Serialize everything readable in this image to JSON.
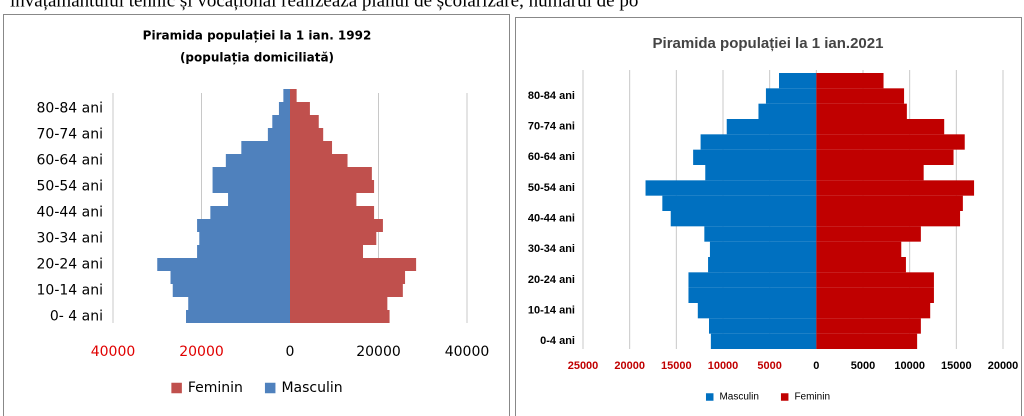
{
  "header_text": "învățământului tehnic și vocațional realizează planul de școlarizare, numărul de po",
  "chart_data": [
    {
      "type": "pyramid",
      "title": "Piramida populației  la 1 ian. 1992",
      "subtitle": "(populația domiciliată)",
      "categories": [
        "0- 4 ani",
        null,
        "10-14 ani",
        null,
        "20-24 ani",
        null,
        "30-34 ani",
        null,
        "40-44 ani",
        null,
        "50-54 ani",
        null,
        "60-64 ani",
        null,
        "70-74 ani",
        null,
        "80-84 ani",
        null
      ],
      "series": [
        {
          "name": "Feminin",
          "color": "#c0504d",
          "values": [
            22500,
            22000,
            25500,
            26000,
            28500,
            16500,
            19500,
            21000,
            19000,
            15000,
            19000,
            18500,
            13000,
            9500,
            7500,
            6500,
            4500,
            1500
          ]
        },
        {
          "name": "Masculin",
          "color": "#4f81bd",
          "values": [
            -23500,
            -23000,
            -26500,
            -27000,
            -30000,
            -21000,
            -20500,
            -21000,
            -18000,
            -14000,
            -17500,
            -17500,
            -14500,
            -11000,
            -5000,
            -4000,
            -2500,
            -1500
          ]
        }
      ],
      "xlim": [
        -40000,
        40000
      ],
      "xticks": [
        {
          "value": -40000,
          "label": "40000"
        },
        {
          "value": -20000,
          "label": "20000"
        },
        0,
        20000,
        40000
      ],
      "negative_tick_color": "#e00000",
      "grid": true,
      "legend": "bottom"
    },
    {
      "type": "pyramid",
      "title": "Piramida populației la 1 ian.2021",
      "categories": [
        "0-4 ani",
        null,
        "10-14 ani",
        null,
        "20-24 ani",
        null,
        "30-34 ani",
        null,
        "40-44 ani",
        null,
        "50-54 ani",
        null,
        "60-64 ani",
        null,
        "70-74 ani",
        null,
        "80-84 ani",
        null
      ],
      "series": [
        {
          "name": "Masculin",
          "color": "#0070c0",
          "values": [
            -11300,
            -11500,
            -12700,
            -13700,
            -13700,
            -11600,
            -11400,
            -12000,
            -15600,
            -16500,
            -18300,
            -11900,
            -13200,
            -12400,
            -9600,
            -6200,
            -5400,
            -4000
          ]
        },
        {
          "name": "Feminin",
          "color": "#c00000",
          "values": [
            10800,
            11200,
            12200,
            12600,
            12600,
            9600,
            9100,
            11200,
            15400,
            15700,
            16900,
            11500,
            14700,
            15900,
            13700,
            9700,
            9400,
            7200
          ]
        }
      ],
      "xlim": [
        -25000,
        20000
      ],
      "xticks": [
        {
          "value": -25000,
          "label": "25000"
        },
        {
          "value": -20000,
          "label": "20000"
        },
        {
          "value": -15000,
          "label": "15000"
        },
        {
          "value": -10000,
          "label": "10000"
        },
        {
          "value": -5000,
          "label": "5000"
        },
        0,
        5000,
        10000,
        15000,
        20000
      ],
      "negative_tick_color": "#c00000",
      "grid": true,
      "legend": "bottom"
    }
  ]
}
